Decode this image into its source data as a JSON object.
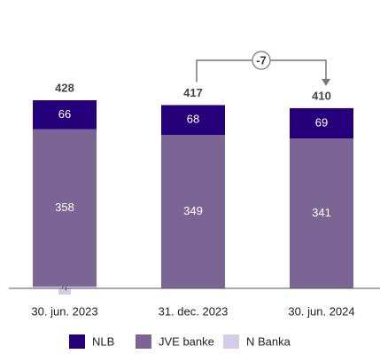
{
  "chart_data": {
    "type": "stacked_bar",
    "categories": [
      "30. jun. 2023",
      "31. dec. 2023",
      "30. jun. 2024"
    ],
    "series": [
      {
        "name": "N Banka",
        "color": "#d5cce6",
        "values": [
          4,
          0,
          0
        ]
      },
      {
        "name": "JVE banke",
        "color": "#7b6594",
        "values": [
          358,
          349,
          341
        ]
      },
      {
        "name": "NLB",
        "color": "#26007a",
        "values": [
          66,
          68,
          69
        ]
      }
    ],
    "totals": [
      428,
      417,
      410
    ],
    "change": -7
  }
}
